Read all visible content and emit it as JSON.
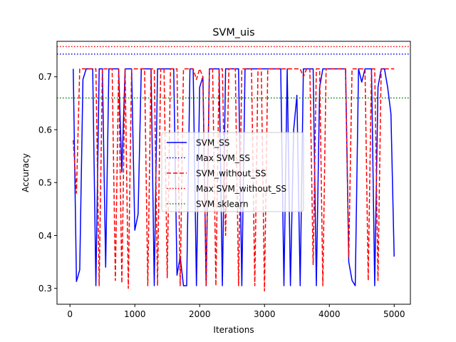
{
  "chart_data": {
    "type": "line",
    "title": "SVM_uis",
    "xlabel": "Iterations",
    "ylabel": "Accuracy",
    "xlim": [
      -200,
      5250
    ],
    "ylim": [
      0.27,
      0.767
    ],
    "xticks": [
      0,
      1000,
      2000,
      3000,
      4000,
      5000
    ],
    "yticks": [
      0.3,
      0.4,
      0.5,
      0.6,
      0.7
    ],
    "legend_position": "center",
    "series": [
      {
        "name": "SVM_SS",
        "color": "#0000ff",
        "style": "solid",
        "x": [
          50,
          100,
          150,
          200,
          250,
          300,
          350,
          400,
          450,
          500,
          550,
          600,
          650,
          700,
          750,
          800,
          850,
          900,
          950,
          1000,
          1050,
          1100,
          1150,
          1200,
          1250,
          1300,
          1350,
          1400,
          1450,
          1500,
          1550,
          1600,
          1650,
          1700,
          1750,
          1800,
          1850,
          1900,
          1950,
          2000,
          2050,
          2100,
          2150,
          2200,
          2250,
          2300,
          2350,
          2400,
          2450,
          2500,
          2550,
          2600,
          2650,
          2700,
          2750,
          2800,
          2850,
          2900,
          2950,
          3000,
          3050,
          3100,
          3150,
          3200,
          3250,
          3300,
          3350,
          3400,
          3450,
          3500,
          3550,
          3600,
          3650,
          3700,
          3750,
          3800,
          3850,
          3900,
          3950,
          4000,
          4050,
          4100,
          4150,
          4200,
          4250,
          4300,
          4350,
          4400,
          4450,
          4500,
          4550,
          4600,
          4650,
          4700,
          4750,
          4800,
          4850,
          4900,
          4950,
          5000
        ],
        "values": [
          0.715,
          0.313,
          0.335,
          0.695,
          0.715,
          0.715,
          0.715,
          0.305,
          0.715,
          0.715,
          0.34,
          0.715,
          0.715,
          0.715,
          0.715,
          0.52,
          0.715,
          0.715,
          0.715,
          0.41,
          0.44,
          0.715,
          0.715,
          0.715,
          0.715,
          0.305,
          0.715,
          0.715,
          0.715,
          0.715,
          0.715,
          0.715,
          0.325,
          0.36,
          0.305,
          0.305,
          0.715,
          0.715,
          0.305,
          0.68,
          0.7,
          0.305,
          0.715,
          0.715,
          0.715,
          0.715,
          0.305,
          0.715,
          0.715,
          0.715,
          0.715,
          0.715,
          0.305,
          0.715,
          0.715,
          0.715,
          0.715,
          0.715,
          0.715,
          0.715,
          0.715,
          0.715,
          0.715,
          0.715,
          0.715,
          0.305,
          0.715,
          0.305,
          0.6,
          0.665,
          0.305,
          0.715,
          0.715,
          0.715,
          0.715,
          0.305,
          0.68,
          0.715,
          0.715,
          0.715,
          0.715,
          0.715,
          0.715,
          0.715,
          0.715,
          0.35,
          0.315,
          0.305,
          0.715,
          0.69,
          0.715,
          0.715,
          0.715,
          0.305,
          0.68,
          0.715,
          0.715,
          0.68,
          0.63,
          0.36
        ]
      },
      {
        "name": "Max SVM_SS",
        "color": "#0000ff",
        "style": "dotted",
        "hline": 0.743
      },
      {
        "name": "SVM_without_SS",
        "color": "#ff0000",
        "style": "dashed",
        "x": [
          50,
          100,
          150,
          200,
          250,
          300,
          350,
          400,
          450,
          500,
          550,
          600,
          650,
          700,
          750,
          800,
          850,
          900,
          950,
          1000,
          1050,
          1100,
          1150,
          1200,
          1250,
          1300,
          1350,
          1400,
          1450,
          1500,
          1550,
          1600,
          1650,
          1700,
          1750,
          1800,
          1850,
          1900,
          1950,
          2000,
          2050,
          2100,
          2150,
          2200,
          2250,
          2300,
          2350,
          2400,
          2450,
          2500,
          2550,
          2600,
          2650,
          2700,
          2750,
          2800,
          2850,
          2900,
          2950,
          3000,
          3050,
          3100,
          3150,
          3200,
          3250,
          3300,
          3350,
          3400,
          3450,
          3500,
          3550,
          3600,
          3650,
          3700,
          3750,
          3800,
          3850,
          3900,
          3950,
          4000,
          4050,
          4100,
          4150,
          4200,
          4250,
          4300,
          4350,
          4400,
          4450,
          4500,
          4550,
          4600,
          4650,
          4700,
          4750,
          4800,
          4850,
          4900,
          4950,
          5000
        ],
        "values": [
          0.58,
          0.48,
          0.715,
          0.715,
          0.715,
          0.715,
          0.715,
          0.715,
          0.305,
          0.715,
          0.715,
          0.715,
          0.715,
          0.315,
          0.715,
          0.31,
          0.715,
          0.3,
          0.715,
          0.715,
          0.715,
          0.715,
          0.715,
          0.305,
          0.715,
          0.715,
          0.305,
          0.715,
          0.715,
          0.32,
          0.715,
          0.715,
          0.715,
          0.305,
          0.715,
          0.715,
          0.715,
          0.715,
          0.695,
          0.715,
          0.7,
          0.305,
          0.715,
          0.715,
          0.305,
          0.715,
          0.715,
          0.4,
          0.715,
          0.715,
          0.715,
          0.305,
          0.715,
          0.715,
          0.715,
          0.715,
          0.305,
          0.715,
          0.715,
          0.295,
          0.715,
          0.715,
          0.715,
          0.715,
          0.715,
          0.715,
          0.715,
          0.715,
          0.715,
          0.715,
          0.715,
          0.7,
          0.715,
          0.715,
          0.345,
          0.715,
          0.715,
          0.305,
          0.715,
          0.715,
          0.715,
          0.715,
          0.715,
          0.715,
          0.715,
          0.36,
          0.715,
          0.715,
          0.715,
          0.715,
          0.715,
          0.315,
          0.715,
          0.715,
          0.315,
          0.715,
          0.715,
          0.715,
          0.715,
          0.715
        ],
        "notes_hidden": ""
      },
      {
        "name": "Max SVM_without_SS",
        "color": "#ff0000",
        "style": "dotted",
        "hline": 0.757
      },
      {
        "name": "SVM sklearn",
        "color": "#008000",
        "style": "dotted",
        "hline": 0.66
      }
    ]
  }
}
